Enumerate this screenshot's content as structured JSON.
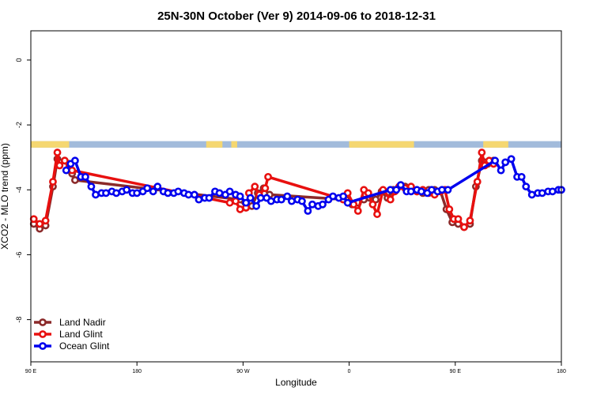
{
  "chart_data": {
    "type": "line",
    "title": "25N-30N October (Ver 9)   2014-09-06 to 2018-12-31",
    "xlabel": "Longitude",
    "ylabel": "XCO2 - MLO trend (ppm)",
    "xlim": [
      90,
      450
    ],
    "ylim": [
      -9.3,
      0.9
    ],
    "x_ticks": [
      {
        "value": 90,
        "label": "90 E"
      },
      {
        "value": 162,
        "label": "180"
      },
      {
        "value": 234,
        "label": "90 W"
      },
      {
        "value": 306,
        "label": "0"
      },
      {
        "value": 378,
        "label": "90 E"
      },
      {
        "value": 450,
        "label": "180"
      }
    ],
    "y_ticks": [
      {
        "value": 0,
        "label": "0"
      },
      {
        "value": -2,
        "label": "-2"
      },
      {
        "value": -4,
        "label": "-4"
      },
      {
        "value": -6,
        "label": "-6"
      },
      {
        "value": -8,
        "label": "-8"
      }
    ],
    "land_ocean_band": {
      "y_top": -2.5,
      "y_bottom": -2.7,
      "ocean_color": "#a2bbdb",
      "land_color": "#f5d771",
      "land_x_ranges": [
        [
          90,
          116
        ],
        [
          209,
          220
        ],
        [
          226,
          230
        ],
        [
          306,
          350
        ],
        [
          397,
          414
        ]
      ]
    },
    "series": [
      {
        "name": "Land Nadir",
        "color": "#8b2a2a",
        "x": [
          92,
          96,
          100,
          105,
          108,
          109.5,
          113,
          116,
          118,
          120,
          232,
          236,
          240,
          244,
          248,
          252,
          304,
          308,
          312,
          316,
          320,
          324,
          328,
          332,
          336,
          340,
          344,
          348,
          352,
          356,
          360,
          364,
          368,
          372,
          376,
          380,
          384,
          388,
          392,
          396,
          398,
          400,
          404
        ],
        "y": [
          -5.05,
          -5.2,
          -5.1,
          -3.9,
          -3.05,
          -3.15,
          -3.1,
          -3.2,
          -3.5,
          -3.7,
          -4.3,
          -4.55,
          -4.5,
          -4.1,
          -3.95,
          -4.15,
          -4.3,
          -4.45,
          -4.4,
          -4.3,
          -4.25,
          -4.3,
          -4.05,
          -4.25,
          -4.0,
          -3.9,
          -3.9,
          -4.0,
          -4.05,
          -4.1,
          -4.0,
          -4.0,
          -4.05,
          -4.6,
          -5.0,
          -5.05,
          -5.15,
          -5.05,
          -3.9,
          -3.1,
          -3.15,
          -3.2,
          -3.1
        ],
        "label_note": ""
      },
      {
        "name": "Land Glint",
        "color": "#e8100f",
        "x": [
          92,
          96,
          100,
          105,
          108,
          109.5,
          113,
          116,
          118,
          225,
          229,
          232,
          236,
          238,
          242,
          245,
          249,
          251,
          302,
          305,
          309,
          312,
          316,
          319,
          322,
          325,
          329,
          334,
          337,
          340,
          344,
          348,
          352,
          356,
          360,
          364,
          368,
          371,
          374,
          377,
          380,
          384,
          388,
          393,
          396,
          398,
          401,
          404
        ],
        "y": [
          -4.9,
          -5.05,
          -4.95,
          -3.75,
          -2.85,
          -3.25,
          -3.1,
          -3.3,
          -3.4,
          -4.4,
          -4.35,
          -4.6,
          -4.55,
          -4.1,
          -3.9,
          -4.15,
          -3.95,
          -3.6,
          -4.3,
          -4.1,
          -4.45,
          -4.65,
          -4.0,
          -4.1,
          -4.45,
          -4.75,
          -4.0,
          -4.3,
          -4.05,
          -3.9,
          -3.95,
          -3.9,
          -4.05,
          -4.0,
          -4.1,
          -4.15,
          -4.05,
          -4.0,
          -4.6,
          -4.9,
          -4.9,
          -5.15,
          -4.95,
          -3.75,
          -2.85,
          -3.25,
          -3.1,
          -3.2
        ],
        "label_note": ""
      },
      {
        "name": "Ocean Glint",
        "color": "#0000ee",
        "x": [
          114,
          117,
          120,
          124,
          127,
          131,
          134,
          138,
          141,
          145,
          148,
          152,
          155,
          159,
          162,
          166,
          169,
          173,
          176,
          180,
          183,
          187,
          190,
          194,
          197,
          201,
          204,
          208,
          211,
          215,
          218,
          222,
          225,
          229,
          232,
          236,
          239,
          243,
          246,
          250,
          253,
          257,
          260,
          264,
          267,
          271,
          274,
          278,
          281,
          285,
          288,
          292,
          295,
          299,
          302,
          305,
          334,
          338,
          341,
          345,
          348,
          352,
          355,
          359,
          362,
          366,
          369,
          373,
          405,
          409,
          412,
          416,
          420,
          423,
          426,
          430,
          434,
          437,
          441,
          444,
          448,
          450
        ],
        "y": [
          -3.4,
          -3.2,
          -3.1,
          -3.6,
          -3.6,
          -3.9,
          -4.15,
          -4.1,
          -4.1,
          -4.05,
          -4.1,
          -4.05,
          -4.0,
          -4.1,
          -4.1,
          -4.05,
          -3.95,
          -4.05,
          -3.9,
          -4.05,
          -4.1,
          -4.1,
          -4.05,
          -4.1,
          -4.15,
          -4.15,
          -4.3,
          -4.25,
          -4.25,
          -4.05,
          -4.1,
          -4.15,
          -4.05,
          -4.15,
          -4.2,
          -4.4,
          -4.25,
          -4.5,
          -4.25,
          -4.25,
          -4.35,
          -4.3,
          -4.3,
          -4.2,
          -4.35,
          -4.3,
          -4.35,
          -4.65,
          -4.45,
          -4.5,
          -4.45,
          -4.3,
          -4.2,
          -4.25,
          -4.2,
          -4.4,
          -4.0,
          -4.0,
          -3.85,
          -4.05,
          -4.05,
          -4.0,
          -4.05,
          -4.1,
          -4.0,
          -4.05,
          -4.0,
          -4.0,
          -3.1,
          -3.4,
          -3.15,
          -3.05,
          -3.6,
          -3.6,
          -3.9,
          -4.15,
          -4.1,
          -4.1,
          -4.05,
          -4.05,
          -4.0,
          -4.0
        ],
        "label_note": ""
      }
    ],
    "legend": {
      "placement": "bottom-left",
      "items": [
        "Land Nadir",
        "Land Glint",
        "Ocean Glint"
      ]
    },
    "grid": false
  }
}
